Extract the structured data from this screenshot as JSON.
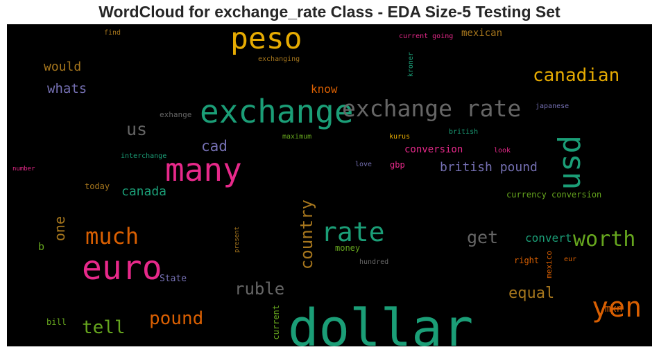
{
  "chart_data": {
    "type": "wordcloud",
    "title": "WordCloud for exchange_rate Class - EDA Size-5 Testing Set",
    "palette": [
      "#1b9e77",
      "#d95f02",
      "#7570b3",
      "#e7298a",
      "#66a61e",
      "#e6ab02",
      "#a6761d",
      "#666666"
    ],
    "words": [
      {
        "text": "dollar",
        "color": "#1b9e77",
        "vertical": false
      },
      {
        "text": "exchange",
        "color": "#1b9e77",
        "vertical": false
      },
      {
        "text": "exchange rate",
        "color": "#666666",
        "vertical": false
      },
      {
        "text": "many",
        "color": "#e7298a",
        "vertical": false
      },
      {
        "text": "euro",
        "color": "#e7298a",
        "vertical": false
      },
      {
        "text": "peso",
        "color": "#e6ab02",
        "vertical": false
      },
      {
        "text": "usd",
        "color": "#1b9e77",
        "vertical": true
      },
      {
        "text": "rate",
        "color": "#1b9e77",
        "vertical": false
      },
      {
        "text": "yen",
        "color": "#d95f02",
        "vertical": false
      },
      {
        "text": "much",
        "color": "#d95f02",
        "vertical": false
      },
      {
        "text": "worth",
        "color": "#66a61e",
        "vertical": false
      },
      {
        "text": "canadian",
        "color": "#e6ab02",
        "vertical": false
      },
      {
        "text": "country",
        "color": "#a6761d",
        "vertical": true
      },
      {
        "text": "pound",
        "color": "#d95f02",
        "vertical": false
      },
      {
        "text": "tell",
        "color": "#66a61e",
        "vertical": false
      },
      {
        "text": "get",
        "color": "#666666",
        "vertical": false
      },
      {
        "text": "ruble",
        "color": "#666666",
        "vertical": false
      },
      {
        "text": "us",
        "color": "#666666",
        "vertical": false
      },
      {
        "text": "british pound",
        "color": "#7570b3",
        "vertical": false
      },
      {
        "text": "cad",
        "color": "#7570b3",
        "vertical": false
      },
      {
        "text": "equal",
        "color": "#a6761d",
        "vertical": false
      },
      {
        "text": "one",
        "color": "#a6761d",
        "vertical": true
      },
      {
        "text": "whats",
        "color": "#7570b3",
        "vertical": false
      },
      {
        "text": "would",
        "color": "#a6761d",
        "vertical": false
      },
      {
        "text": "canada",
        "color": "#1b9e77",
        "vertical": false
      },
      {
        "text": "know",
        "color": "#d95f02",
        "vertical": false
      },
      {
        "text": "convert",
        "color": "#1b9e77",
        "vertical": false
      },
      {
        "text": "conversion",
        "color": "#e7298a",
        "vertical": false
      },
      {
        "text": "mexican",
        "color": "#a6761d",
        "vertical": false
      },
      {
        "text": "mxn",
        "color": "#d95f02",
        "vertical": false
      },
      {
        "text": "State",
        "color": "#7570b3",
        "vertical": false
      },
      {
        "text": "b",
        "color": "#66a61e",
        "vertical": false
      },
      {
        "text": "currency conversion",
        "color": "#66a61e",
        "vertical": false
      },
      {
        "text": "today",
        "color": "#a6761d",
        "vertical": false
      },
      {
        "text": "bill",
        "color": "#66a61e",
        "vertical": false
      },
      {
        "text": "money",
        "color": "#66a61e",
        "vertical": false
      },
      {
        "text": "gbp",
        "color": "#e7298a",
        "vertical": false
      },
      {
        "text": "right",
        "color": "#d95f02",
        "vertical": false
      },
      {
        "text": "current",
        "color": "#66a61e",
        "vertical": true
      },
      {
        "text": "mexico",
        "color": "#d95f02",
        "vertical": true
      },
      {
        "text": "exhange",
        "color": "#666666",
        "vertical": false
      },
      {
        "text": "find",
        "color": "#a6761d",
        "vertical": false
      },
      {
        "text": "current going",
        "color": "#e7298a",
        "vertical": false
      },
      {
        "text": "exchanging",
        "color": "#a6761d",
        "vertical": false
      },
      {
        "text": "kroner",
        "color": "#1b9e77",
        "vertical": true
      },
      {
        "text": "japanese",
        "color": "#7570b3",
        "vertical": false
      },
      {
        "text": "british",
        "color": "#1b9e77",
        "vertical": false
      },
      {
        "text": "maximum",
        "color": "#66a61e",
        "vertical": false
      },
      {
        "text": "kurus",
        "color": "#e6ab02",
        "vertical": false
      },
      {
        "text": "interchange",
        "color": "#1b9e77",
        "vertical": false
      },
      {
        "text": "look",
        "color": "#e7298a",
        "vertical": false
      },
      {
        "text": "love",
        "color": "#7570b3",
        "vertical": false
      },
      {
        "text": "number",
        "color": "#e7298a",
        "vertical": false
      },
      {
        "text": "present",
        "color": "#a6761d",
        "vertical": true
      },
      {
        "text": "hundred",
        "color": "#666666",
        "vertical": false
      },
      {
        "text": "eur",
        "color": "#d95f02",
        "vertical": false
      }
    ]
  }
}
